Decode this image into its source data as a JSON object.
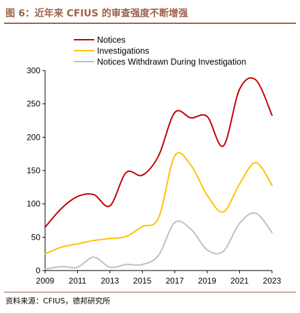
{
  "header": {
    "title": "图 6：近年来 CFIUS 的审查强度不断增强"
  },
  "footer": {
    "source": "资料来源：CFIUS，德邦研究所"
  },
  "chart_data": {
    "type": "line",
    "title": "",
    "xlabel": "",
    "ylabel": "",
    "xlim": [
      2009,
      2023
    ],
    "ylim": [
      0,
      300
    ],
    "x_ticks": [
      2009,
      2011,
      2013,
      2015,
      2017,
      2019,
      2021,
      2023
    ],
    "x_tick_labels": [
      "2009",
      "2011",
      "2013",
      "2015",
      "2017",
      "2019",
      "2021",
      "2023"
    ],
    "y_ticks": [
      0,
      50,
      100,
      150,
      200,
      250,
      300
    ],
    "y_tick_labels": [
      "0",
      "50",
      "100",
      "150",
      "200",
      "250",
      "300"
    ],
    "grid": false,
    "legend_position": "top",
    "x": [
      2009,
      2010,
      2011,
      2012,
      2013,
      2014,
      2015,
      2016,
      2017,
      2018,
      2019,
      2020,
      2021,
      2022,
      2023
    ],
    "series": [
      {
        "name": "Notices",
        "color": "#c00000",
        "values": [
          65,
          93,
          111,
          114,
          97,
          147,
          143,
          172,
          237,
          229,
          231,
          187,
          272,
          286,
          233
        ]
      },
      {
        "name": "Investigations",
        "color": "#ffc000",
        "values": [
          25,
          35,
          40,
          45,
          48,
          51,
          66,
          79,
          172,
          158,
          113,
          88,
          130,
          162,
          128
        ]
      },
      {
        "name": "Notices Withdrawn During Investigation",
        "color": "#bfbfbf",
        "values": [
          2,
          6,
          5,
          20,
          5,
          9,
          9,
          23,
          72,
          62,
          31,
          29,
          71,
          86,
          57
        ]
      }
    ]
  }
}
